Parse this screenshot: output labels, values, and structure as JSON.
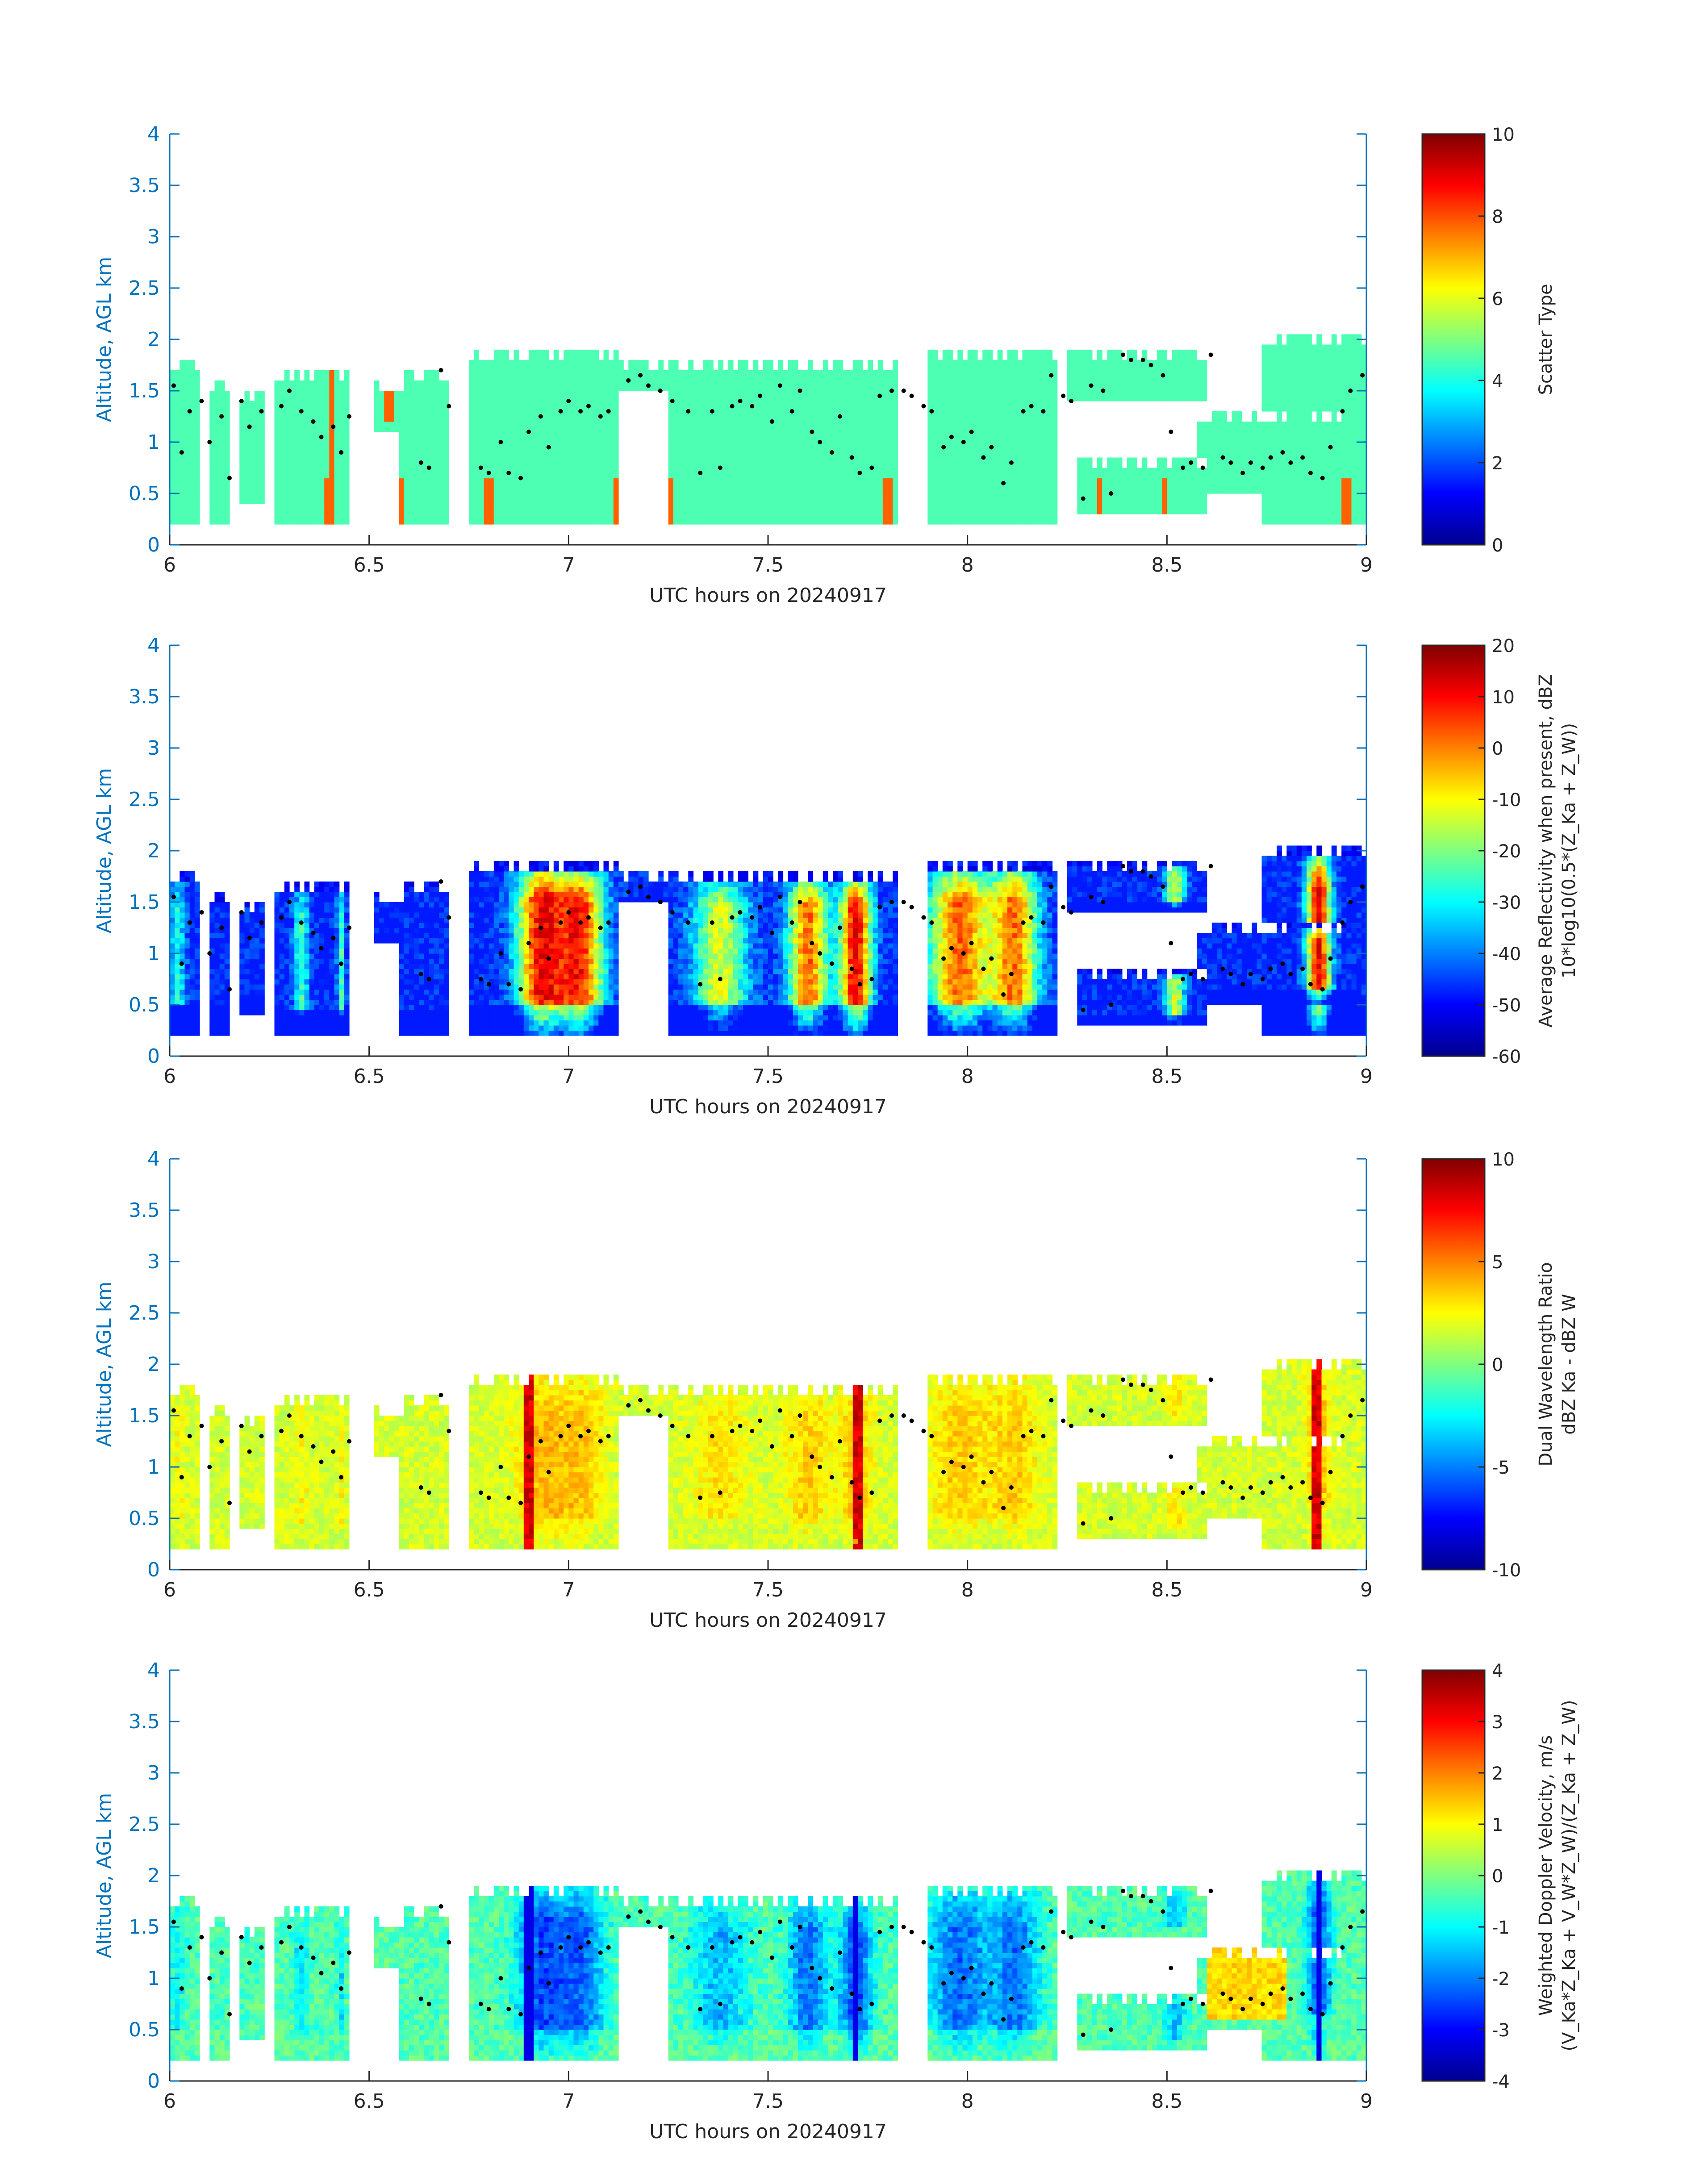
{
  "colors": {
    "axis": "#0072BD",
    "text": "#262626",
    "cloud_dots": "#000000",
    "jet": [
      "#00008F",
      "#0000FF",
      "#0080FF",
      "#00FFFF",
      "#80FF80",
      "#FFFF00",
      "#FF8000",
      "#FF0000",
      "#800000"
    ]
  },
  "chart_data": [
    {
      "type": "heatmap",
      "xlabel": "UTC hours on 20240917",
      "ylabel": "Altitude, AGL km",
      "xlim": [
        6,
        9
      ],
      "ylim": [
        0,
        4
      ],
      "xticks": [
        "6",
        "6.5",
        "7",
        "7.5",
        "8",
        "8.5",
        "9"
      ],
      "yticks": [
        "0",
        "0.5",
        "1",
        "1.5",
        "2",
        "2.5",
        "3",
        "3.5",
        "4"
      ],
      "colorbar": {
        "label_lines": [
          "Scatter Type"
        ],
        "clim": [
          0,
          10
        ],
        "ticks": [
          "0",
          "2",
          "4",
          "6",
          "8",
          "10"
        ]
      },
      "field": "scatter"
    },
    {
      "type": "heatmap",
      "xlabel": "UTC hours on 20240917",
      "ylabel": "Altitude, AGL km",
      "xlim": [
        6,
        9
      ],
      "ylim": [
        0,
        4
      ],
      "xticks": [
        "6",
        "6.5",
        "7",
        "7.5",
        "8",
        "8.5",
        "9"
      ],
      "yticks": [
        "0",
        "0.5",
        "1",
        "1.5",
        "2",
        "2.5",
        "3",
        "3.5",
        "4"
      ],
      "colorbar": {
        "label_lines": [
          "Average Reflectivity when present, dBZ",
          "10*log10(0.5*(Z_Ka + Z_W))"
        ],
        "clim": [
          -60,
          20
        ],
        "ticks": [
          "-60",
          "-50",
          "-40",
          "-30",
          "-20",
          "-10",
          "0",
          "10",
          "20"
        ]
      },
      "field": "reflectivity"
    },
    {
      "type": "heatmap",
      "xlabel": "UTC hours on 20240917",
      "ylabel": "Altitude, AGL km",
      "xlim": [
        6,
        9
      ],
      "ylim": [
        0,
        4
      ],
      "xticks": [
        "6",
        "6.5",
        "7",
        "7.5",
        "8",
        "8.5",
        "9"
      ],
      "yticks": [
        "0",
        "0.5",
        "1",
        "1.5",
        "2",
        "2.5",
        "3",
        "3.5",
        "4"
      ],
      "colorbar": {
        "label_lines": [
          "Dual Wavelength Ratio",
          "dBZ Ka - dBZ W"
        ],
        "clim": [
          -10,
          10
        ],
        "ticks": [
          "-10",
          "-5",
          "0",
          "5",
          "10"
        ]
      },
      "field": "dwr"
    },
    {
      "type": "heatmap",
      "xlabel": "UTC hours on 20240917",
      "ylabel": "Altitude, AGL km",
      "xlim": [
        6,
        9
      ],
      "ylim": [
        0,
        4
      ],
      "xticks": [
        "6",
        "6.5",
        "7",
        "7.5",
        "8",
        "8.5",
        "9"
      ],
      "yticks": [
        "0",
        "0.5",
        "1",
        "1.5",
        "2",
        "2.5",
        "3",
        "3.5",
        "4"
      ],
      "colorbar": {
        "label_lines": [
          "Weighted Doppler Velocity, m/s",
          "(V_Ka*Z_Ka + V_W*Z_W)/(Z_Ka + Z_W)"
        ],
        "clim": [
          -4,
          4
        ],
        "ticks": [
          "-4",
          "-3",
          "-2",
          "-1",
          "0",
          "1",
          "2",
          "3",
          "4"
        ]
      },
      "field": "velocity"
    }
  ],
  "cloud_columns": [
    {
      "x": [
        6.0,
        6.07
      ],
      "top": 1.8,
      "base": 0.2
    },
    {
      "x": [
        6.1,
        6.15
      ],
      "top": 1.6,
      "base": 0.2
    },
    {
      "x": [
        6.17,
        6.24
      ],
      "top": 1.5,
      "base": 0.4
    },
    {
      "x": [
        6.26,
        6.45
      ],
      "top": 1.7,
      "base": 0.2
    },
    {
      "x": [
        6.51,
        6.59
      ],
      "top": 1.6,
      "base": 1.1
    },
    {
      "x": [
        6.57,
        6.7
      ],
      "top": 1.7,
      "base": 0.2
    },
    {
      "x": [
        6.75,
        7.12
      ],
      "top": 1.9,
      "base": 0.2
    },
    {
      "x": [
        7.13,
        7.27
      ],
      "top": 1.8,
      "base": 1.5
    },
    {
      "x": [
        7.25,
        7.82
      ],
      "top": 1.8,
      "base": 0.2
    },
    {
      "x": [
        7.9,
        8.22
      ],
      "top": 1.9,
      "base": 0.2
    },
    {
      "x": [
        8.25,
        8.6
      ],
      "top": 1.9,
      "base": 1.4
    },
    {
      "x": [
        8.27,
        8.6
      ],
      "top": 0.85,
      "base": 0.3
    },
    {
      "x": [
        8.58,
        8.98
      ],
      "top": 1.3,
      "base": 0.5
    },
    {
      "x": [
        8.74,
        9.0
      ],
      "top": 2.05,
      "base": 0.2
    }
  ],
  "cloud_base_dots": {
    "x": [
      6.01,
      6.03,
      6.05,
      6.08,
      6.1,
      6.13,
      6.15,
      6.18,
      6.2,
      6.23,
      6.28,
      6.3,
      6.33,
      6.36,
      6.38,
      6.41,
      6.43,
      6.45,
      6.63,
      6.65,
      6.68,
      6.7,
      6.78,
      6.8,
      6.83,
      6.85,
      6.88,
      6.9,
      6.93,
      6.95,
      6.98,
      7.0,
      7.03,
      7.05,
      7.08,
      7.1,
      7.15,
      7.18,
      7.2,
      7.23,
      7.26,
      7.3,
      7.33,
      7.36,
      7.38,
      7.41,
      7.43,
      7.46,
      7.48,
      7.51,
      7.53,
      7.56,
      7.58,
      7.61,
      7.63,
      7.66,
      7.68,
      7.71,
      7.73,
      7.76,
      7.78,
      7.81,
      7.84,
      7.86,
      7.89,
      7.91,
      7.94,
      7.96,
      7.99,
      8.01,
      8.04,
      8.06,
      8.09,
      8.11,
      8.14,
      8.16,
      8.19,
      8.21,
      8.24,
      8.26,
      8.29,
      8.31,
      8.34,
      8.36,
      8.39,
      8.41,
      8.44,
      8.46,
      8.49,
      8.51,
      8.54,
      8.56,
      8.59,
      8.61,
      8.64,
      8.66,
      8.69,
      8.71,
      8.74,
      8.76,
      8.79,
      8.81,
      8.84,
      8.86,
      8.89,
      8.91,
      8.94,
      8.96,
      8.99
    ],
    "y": [
      1.55,
      0.9,
      1.3,
      1.4,
      1.0,
      1.25,
      0.65,
      1.4,
      1.15,
      1.3,
      1.35,
      1.5,
      1.3,
      1.2,
      1.05,
      1.15,
      0.9,
      1.25,
      0.8,
      0.75,
      1.7,
      1.35,
      0.75,
      0.7,
      1.0,
      0.7,
      0.65,
      1.1,
      1.25,
      0.95,
      1.3,
      1.4,
      1.3,
      1.35,
      1.25,
      1.3,
      1.6,
      1.65,
      1.55,
      1.5,
      1.4,
      1.3,
      0.7,
      1.3,
      0.75,
      1.35,
      1.4,
      1.35,
      1.45,
      1.2,
      1.55,
      1.3,
      1.5,
      1.1,
      1.0,
      0.9,
      1.25,
      0.85,
      0.7,
      0.75,
      1.45,
      1.5,
      1.5,
      1.45,
      1.35,
      1.3,
      0.95,
      1.05,
      1.0,
      1.1,
      0.85,
      0.95,
      0.6,
      0.8,
      1.3,
      1.35,
      1.3,
      1.65,
      1.45,
      1.4,
      0.45,
      1.55,
      1.5,
      0.5,
      1.85,
      1.8,
      1.8,
      1.75,
      1.65,
      1.1,
      0.75,
      0.8,
      0.75,
      1.85,
      0.85,
      0.8,
      0.7,
      0.8,
      0.75,
      0.85,
      0.9,
      0.8,
      0.85,
      0.7,
      0.65,
      0.95,
      1.3,
      1.5,
      1.65
    ]
  }
}
